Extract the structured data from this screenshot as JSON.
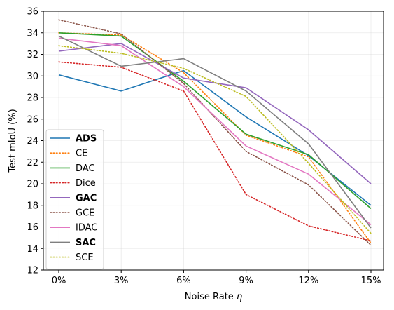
{
  "chart_data": {
    "type": "line",
    "x": [
      "0%",
      "3%",
      "6%",
      "9%",
      "12%",
      "15%"
    ],
    "xlabel_text": "Noise Rate ",
    "xlabel_symbol": "η",
    "ylabel": "Test mIoU (%)",
    "ylim": [
      12,
      36
    ],
    "yticks": [
      "12",
      "14",
      "16",
      "18",
      "20",
      "22",
      "24",
      "26",
      "28",
      "30",
      "32",
      "34",
      "36"
    ],
    "grid": true,
    "legend_position": "lower-left",
    "series": [
      {
        "name": "ADS",
        "color": "#1f77b4",
        "style": "solid",
        "bold": true,
        "values": [
          30.1,
          28.6,
          30.5,
          26.2,
          22.6,
          18.0
        ]
      },
      {
        "name": "CE",
        "color": "#ff7f0e",
        "style": "dotted",
        "bold": false,
        "values": [
          34.0,
          33.8,
          30.3,
          24.5,
          22.5,
          14.5
        ]
      },
      {
        "name": "DAC",
        "color": "#2ca02c",
        "style": "solid",
        "bold": false,
        "values": [
          34.0,
          33.7,
          29.5,
          24.6,
          22.7,
          17.7
        ]
      },
      {
        "name": "Dice",
        "color": "#d62728",
        "style": "dotted",
        "bold": false,
        "values": [
          31.3,
          30.8,
          28.6,
          19.0,
          16.1,
          14.7
        ]
      },
      {
        "name": "GAC",
        "color": "#9467bd",
        "style": "solid",
        "bold": true,
        "values": [
          32.3,
          33.0,
          29.8,
          28.9,
          25.0,
          20.0
        ]
      },
      {
        "name": "GCE",
        "color": "#8c564b",
        "style": "dotted",
        "bold": false,
        "values": [
          35.2,
          33.9,
          29.3,
          23.0,
          19.9,
          14.3
        ]
      },
      {
        "name": "IDAC",
        "color": "#e377c2",
        "style": "solid",
        "bold": false,
        "values": [
          33.5,
          32.8,
          29.0,
          23.5,
          20.9,
          16.2
        ]
      },
      {
        "name": "SAC",
        "color": "#7f7f7f",
        "style": "solid",
        "bold": true,
        "values": [
          33.7,
          30.9,
          31.6,
          28.6,
          23.7,
          15.9
        ]
      },
      {
        "name": "SCE",
        "color": "#bcbd22",
        "style": "dotted",
        "bold": false,
        "values": [
          32.8,
          32.1,
          30.7,
          28.1,
          21.9,
          15.4
        ]
      }
    ]
  }
}
